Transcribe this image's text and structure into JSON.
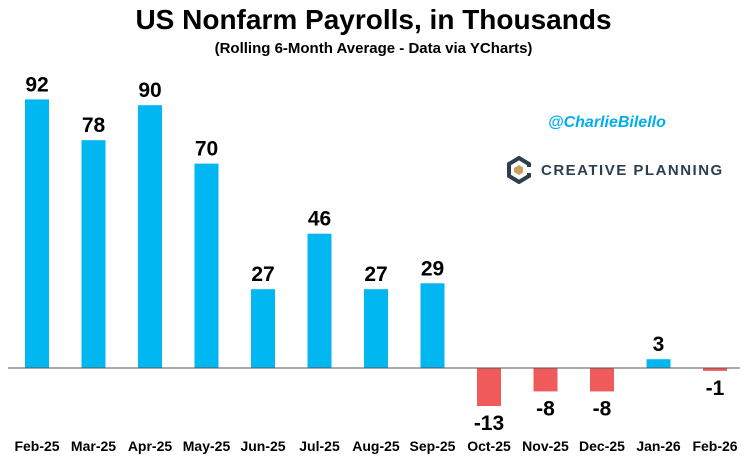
{
  "header": {
    "title": "US Nonfarm Payrolls, in Thousands",
    "subtitle": "(Rolling 6-Month Average - Data via YCharts)"
  },
  "watermark": {
    "handle": "@CharlieBilello",
    "brand": "CREATIVE PLANNING",
    "brand_color": "#2C3E50",
    "handle_color": "#00AEEF",
    "logo_icon": "creative-planning-logo-icon"
  },
  "colors": {
    "positive": "#00B7F1",
    "negative": "#F05A5A",
    "axis": "#555555",
    "label": "#000000"
  },
  "chart_data": {
    "type": "bar",
    "title": "US Nonfarm Payrolls, in Thousands",
    "subtitle": "(Rolling 6-Month Average - Data via YCharts)",
    "categories": [
      "Feb-25",
      "Mar-25",
      "Apr-25",
      "May-25",
      "Jun-25",
      "Jul-25",
      "Aug-25",
      "Sep-25",
      "Oct-25",
      "Nov-25",
      "Dec-25",
      "Jan-26",
      "Feb-26"
    ],
    "values": [
      92,
      78,
      90,
      70,
      27,
      46,
      27,
      29,
      -13,
      -8,
      -8,
      3,
      -1
    ],
    "value_labels": [
      "92",
      "78",
      "90",
      "70",
      "27",
      "46",
      "27",
      "29",
      "-13",
      "-8",
      "-8",
      "3",
      "-1"
    ],
    "xlabel": "",
    "ylabel": "",
    "ylim": [
      -16,
      96
    ],
    "grid": false,
    "legend": "none"
  }
}
